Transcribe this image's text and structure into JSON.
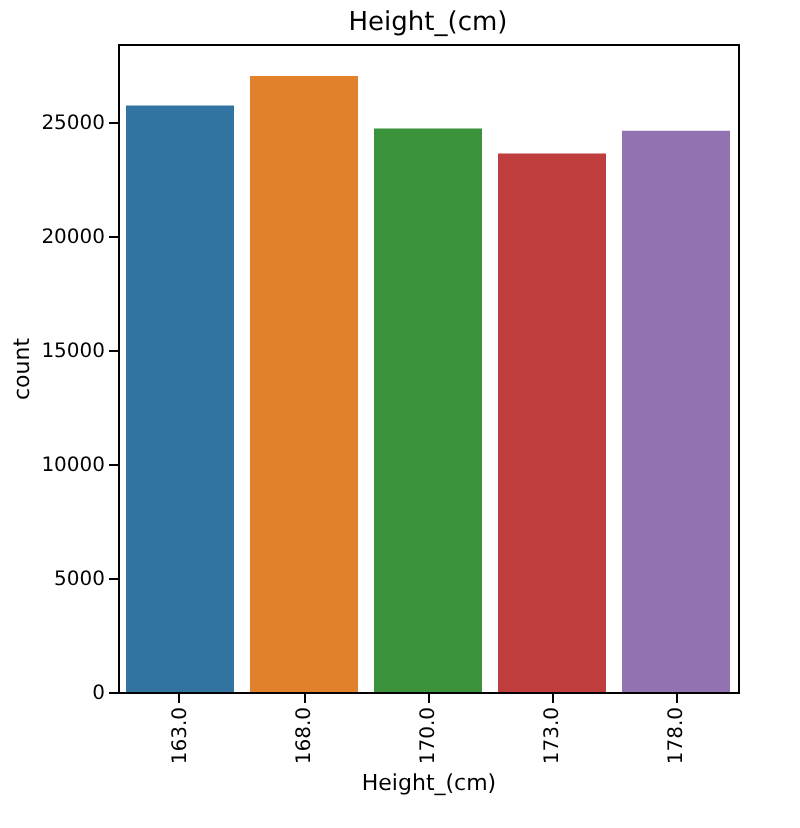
{
  "chart_data": {
    "type": "bar",
    "title": "Height_(cm)",
    "xlabel": "Height_(cm)",
    "ylabel": "count",
    "categories": [
      "163.0",
      "168.0",
      "170.0",
      "173.0",
      "178.0"
    ],
    "values": [
      25700,
      27000,
      24700,
      23600,
      24600
    ],
    "colors": [
      "#3274a1",
      "#e1812c",
      "#3a923a",
      "#c03d3e",
      "#9372b2"
    ],
    "ylim": [
      0,
      28400
    ],
    "yticks": [
      0,
      5000,
      10000,
      15000,
      20000,
      25000
    ],
    "grid": false,
    "legend": false
  }
}
